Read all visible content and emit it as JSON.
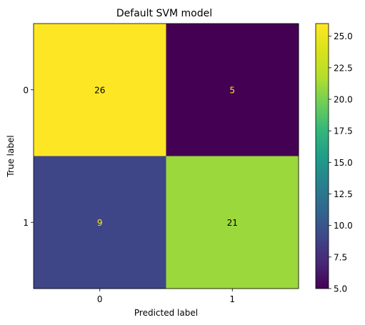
{
  "chart_data": {
    "type": "heatmap",
    "title": "Default SVM model",
    "xlabel": "Predicted label",
    "ylabel": "True label",
    "x_categories": [
      "0",
      "1"
    ],
    "y_categories": [
      "0",
      "1"
    ],
    "values": [
      [
        26,
        5
      ],
      [
        9,
        21
      ]
    ],
    "colormap": "viridis",
    "value_range": [
      5,
      26
    ],
    "colorbar": {
      "ticks": [
        5.0,
        7.5,
        10.0,
        12.5,
        15.0,
        17.5,
        20.0,
        22.5,
        25.0
      ],
      "tick_labels": [
        "5.0",
        "7.5",
        "10.0",
        "12.5",
        "15.0",
        "17.5",
        "20.0",
        "22.5",
        "25.0"
      ]
    },
    "text_colors": {
      "on_light": "#000000",
      "on_dark": "#fde725"
    },
    "grid": false
  }
}
